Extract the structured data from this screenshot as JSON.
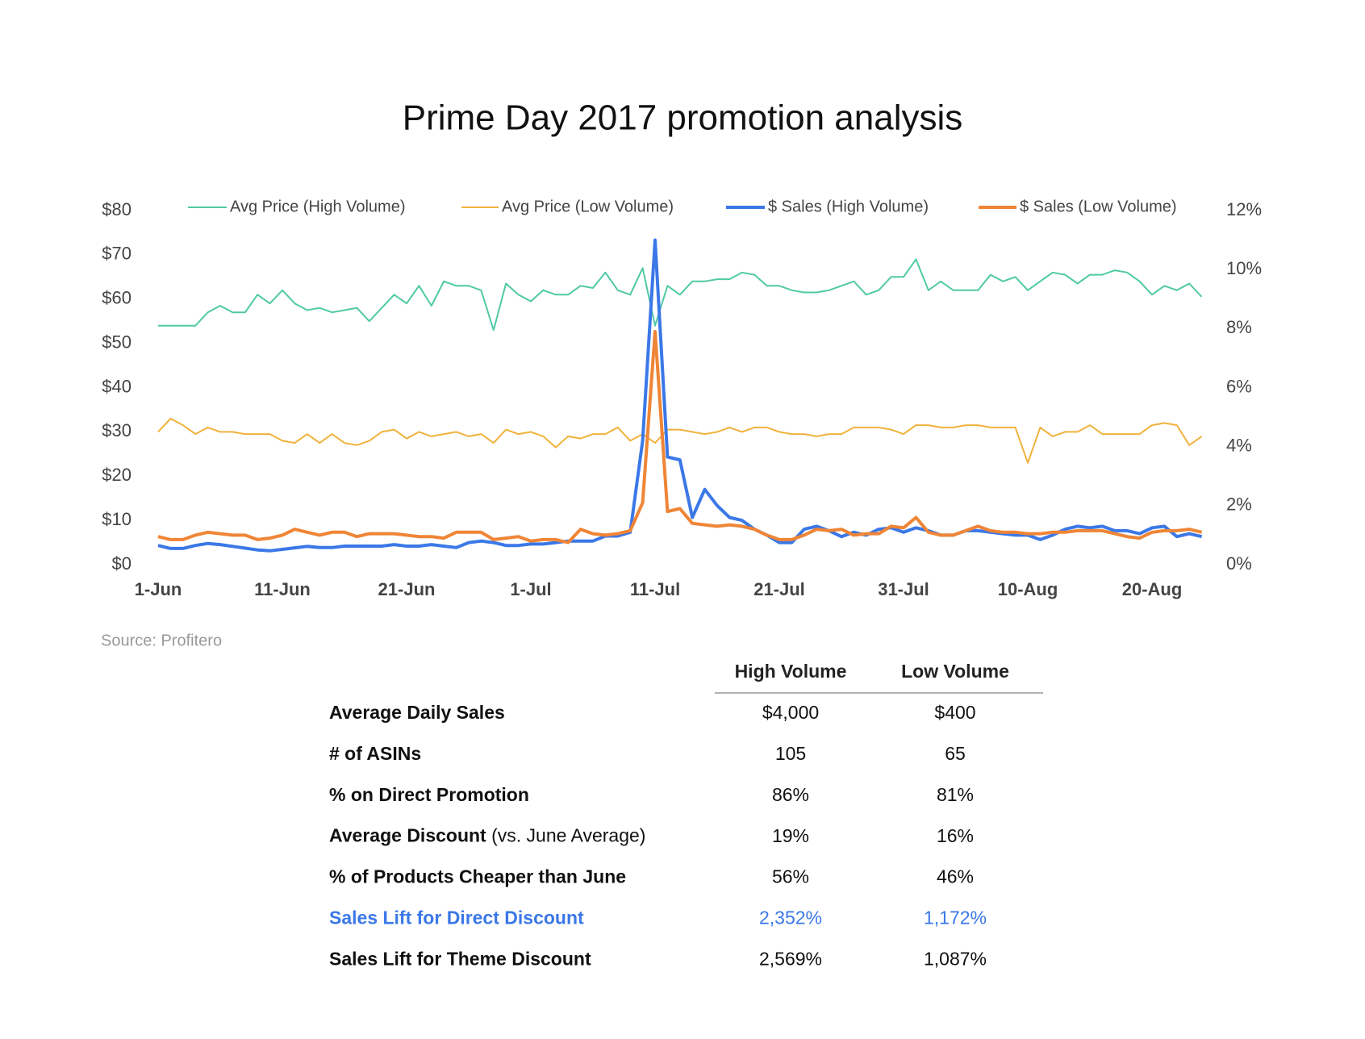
{
  "chart_data": {
    "type": "line",
    "title": "Prime Day 2017 promotion analysis",
    "source": "Source: Profitero",
    "categories": [
      "1-Jun",
      null,
      null,
      null,
      null,
      null,
      null,
      null,
      null,
      null,
      "11-Jun",
      null,
      null,
      null,
      null,
      null,
      null,
      null,
      null,
      null,
      "21-Jun",
      null,
      null,
      null,
      null,
      null,
      null,
      null,
      null,
      null,
      "1-Jul",
      null,
      null,
      null,
      null,
      null,
      null,
      null,
      null,
      null,
      "11-Jul",
      null,
      null,
      null,
      null,
      null,
      null,
      null,
      null,
      null,
      "21-Jul",
      null,
      null,
      null,
      null,
      null,
      null,
      null,
      null,
      null,
      "31-Jul",
      null,
      null,
      null,
      null,
      null,
      null,
      null,
      null,
      null,
      "10-Aug",
      null,
      null,
      null,
      null,
      null,
      null,
      null,
      null,
      null,
      "20-Aug",
      null,
      null,
      null,
      null
    ],
    "ylim": [
      0,
      80
    ],
    "yticks": [
      {
        "value": 0,
        "label": "$0"
      },
      {
        "value": 10,
        "label": "$10"
      },
      {
        "value": 20,
        "label": "$20"
      },
      {
        "value": 30,
        "label": "$30"
      },
      {
        "value": 40,
        "label": "$40"
      },
      {
        "value": 50,
        "label": "$50"
      },
      {
        "value": 60,
        "label": "$60"
      },
      {
        "value": 70,
        "label": "$70"
      },
      {
        "value": 80,
        "label": "$80"
      }
    ],
    "y2lim": [
      0,
      12
    ],
    "y2ticks": [
      {
        "value": 0,
        "label": "0%"
      },
      {
        "value": 2,
        "label": "2%"
      },
      {
        "value": 4,
        "label": "4%"
      },
      {
        "value": 6,
        "label": "6%"
      },
      {
        "value": 8,
        "label": "8%"
      },
      {
        "value": 10,
        "label": "10%"
      },
      {
        "value": 12,
        "label": "12%"
      }
    ],
    "grid": false,
    "legend": "top",
    "series": [
      {
        "name": "Avg Price (High Volume)",
        "color": "#4fc9a5",
        "values": [
          54,
          54,
          54,
          54,
          57,
          58.5,
          57,
          57,
          61,
          59,
          62,
          59,
          57.5,
          58,
          57,
          57.5,
          58,
          55,
          58,
          61,
          59,
          63,
          58.5,
          64,
          63,
          63,
          62,
          53,
          63.5,
          61,
          59.5,
          62,
          61,
          61,
          63,
          62.5,
          66,
          62,
          61,
          67,
          54,
          63,
          61,
          64,
          64,
          64.5,
          64.5,
          66,
          65.5,
          63,
          63,
          62,
          61.5,
          61.5,
          62,
          63,
          64,
          61,
          62,
          65,
          65,
          69,
          62,
          64,
          62,
          62,
          62,
          65.5,
          64,
          65,
          62,
          64,
          66,
          65.5,
          63.5,
          65.5,
          65.5,
          66.5,
          66,
          64,
          61,
          63,
          62,
          63.5,
          60.5
        ]
      },
      {
        "name": "Avg Price (Low Volume)",
        "color": "#f0b23c",
        "values": [
          30,
          33,
          31.5,
          29.5,
          31,
          30,
          30,
          29.5,
          29.5,
          29.5,
          28,
          27.5,
          29.5,
          27.5,
          29.5,
          27.5,
          27,
          28,
          30,
          30.5,
          28.5,
          30,
          29,
          29.5,
          30,
          29,
          29.5,
          27.5,
          30.5,
          29.5,
          30,
          29,
          26.5,
          29,
          28.5,
          29.5,
          29.5,
          31,
          28,
          29.5,
          27.5,
          30.5,
          30.5,
          30,
          29.5,
          30,
          31,
          30,
          31,
          31,
          30,
          29.5,
          29.5,
          29,
          29.5,
          29.5,
          31,
          31,
          31,
          30.5,
          29.5,
          31.5,
          31.5,
          31,
          31,
          31.5,
          31.5,
          31,
          31,
          31,
          23,
          31,
          29,
          30,
          30,
          31.5,
          29.5,
          29.5,
          29.5,
          29.5,
          31.5,
          32,
          31.5,
          27,
          29
        ]
      },
      {
        "name": "$ Sales (High Volume)",
        "color": "#3b78e7",
        "axis": "y2",
        "values": [
          0.65,
          0.55,
          0.55,
          0.65,
          0.72,
          0.68,
          0.62,
          0.56,
          0.5,
          0.47,
          0.52,
          0.57,
          0.62,
          0.58,
          0.58,
          0.63,
          0.63,
          0.63,
          0.63,
          0.68,
          0.63,
          0.63,
          0.68,
          0.63,
          0.58,
          0.75,
          0.8,
          0.75,
          0.65,
          0.65,
          0.7,
          0.7,
          0.75,
          0.8,
          0.8,
          0.8,
          0.97,
          0.97,
          1.1,
          4.2,
          11.0,
          3.65,
          3.55,
          1.6,
          2.55,
          2.0,
          1.6,
          1.5,
          1.2,
          1.0,
          0.75,
          0.75,
          1.2,
          1.3,
          1.15,
          0.95,
          1.1,
          1.0,
          1.2,
          1.25,
          1.1,
          1.25,
          1.15,
          1.0,
          1.0,
          1.15,
          1.15,
          1.1,
          1.05,
          1.0,
          1.0,
          0.85,
          1.0,
          1.2,
          1.3,
          1.25,
          1.3,
          1.15,
          1.15,
          1.05,
          1.25,
          1.3,
          0.95,
          1.05,
          0.95
        ]
      },
      {
        "name": "$ Sales (Low Volume)",
        "color": "#ef8536",
        "axis": "y2",
        "values": [
          0.95,
          0.85,
          0.85,
          1.0,
          1.1,
          1.05,
          1.0,
          1.0,
          0.85,
          0.9,
          1.0,
          1.2,
          1.1,
          1.0,
          1.1,
          1.1,
          0.95,
          1.05,
          1.05,
          1.05,
          1.0,
          0.95,
          0.95,
          0.9,
          1.1,
          1.1,
          1.1,
          0.85,
          0.9,
          0.95,
          0.8,
          0.85,
          0.85,
          0.75,
          1.2,
          1.05,
          1.0,
          1.05,
          1.15,
          2.1,
          7.9,
          1.8,
          1.9,
          1.4,
          1.35,
          1.3,
          1.35,
          1.3,
          1.2,
          1.0,
          0.85,
          0.85,
          1.0,
          1.2,
          1.15,
          1.2,
          1.0,
          1.05,
          1.05,
          1.3,
          1.25,
          1.6,
          1.1,
          1.0,
          1.0,
          1.15,
          1.3,
          1.15,
          1.1,
          1.1,
          1.05,
          1.05,
          1.1,
          1.1,
          1.15,
          1.15,
          1.15,
          1.05,
          0.95,
          0.9,
          1.1,
          1.15,
          1.15,
          1.2,
          1.1
        ]
      }
    ]
  },
  "table": {
    "columns": [
      "High Volume",
      "Low Volume"
    ],
    "rows": [
      {
        "label": "Average Daily Sales",
        "values": [
          "$4,000",
          "$400"
        ]
      },
      {
        "label": "# of ASINs",
        "values": [
          "105",
          "65"
        ]
      },
      {
        "label": "% on Direct Promotion",
        "values": [
          "86%",
          "81%"
        ]
      },
      {
        "label": "Average Discount",
        "note": "(vs. June Average)",
        "values": [
          "19%",
          "16%"
        ]
      },
      {
        "label": "% of Products Cheaper than June",
        "values": [
          "56%",
          "46%"
        ]
      },
      {
        "label": "Sales Lift for Direct Discount",
        "values": [
          "2,352%",
          "1,172%"
        ],
        "color": "#3b78e7"
      },
      {
        "label": "Sales Lift for Theme Discount",
        "values": [
          "2,569%",
          "1,087%"
        ]
      }
    ]
  }
}
